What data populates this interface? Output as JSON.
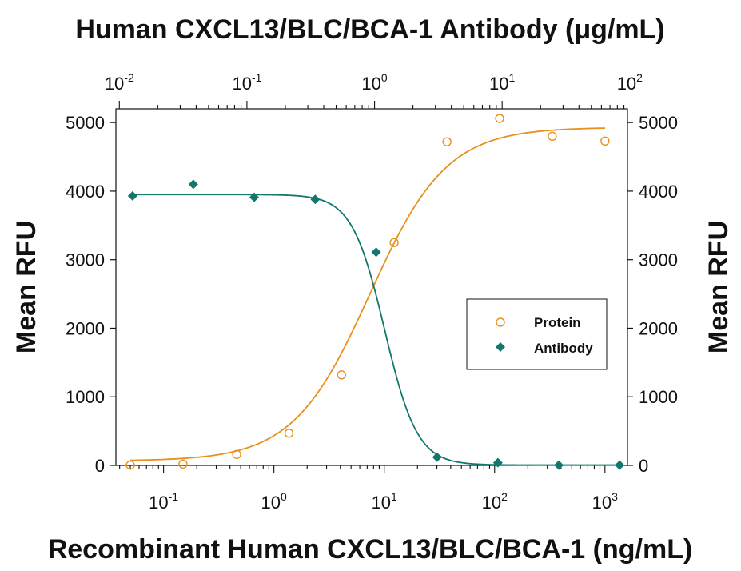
{
  "chart_data": {
    "type": "scatter",
    "title_top": "Human CXCL13/BLC/BCA-1 Antibody (μg/mL)",
    "xlabel": "Recombinant Human CXCL13/BLC/BCA-1 (ng/mL)",
    "ylabel_left": "Mean RFU",
    "ylabel_right": "Mean RFU",
    "x_scale": "log",
    "x_top_scale": "log",
    "xlim": [
      0.037,
      1600
    ],
    "x_top_lim": [
      0.0094,
      96
    ],
    "ylim": [
      0,
      5200
    ],
    "y_ticks": [
      "0",
      "1000",
      "2000",
      "3000",
      "4000",
      "5000"
    ],
    "y_tick_values": [
      0,
      1000,
      2000,
      3000,
      4000,
      5000
    ],
    "x_bottom_ticks": [
      {
        "value": 0.1,
        "base": "10",
        "exp": "-1"
      },
      {
        "value": 1,
        "base": "10",
        "exp": "0"
      },
      {
        "value": 10,
        "base": "10",
        "exp": "1"
      },
      {
        "value": 100,
        "base": "10",
        "exp": "2"
      },
      {
        "value": 1000,
        "base": "10",
        "exp": "3"
      }
    ],
    "x_top_ticks": [
      {
        "value": 0.01,
        "base": "10",
        "exp": "-2"
      },
      {
        "value": 0.1,
        "base": "10",
        "exp": "-1"
      },
      {
        "value": 1,
        "base": "10",
        "exp": "0"
      },
      {
        "value": 10,
        "base": "10",
        "exp": "1"
      },
      {
        "value": 100,
        "base": "10",
        "exp": "2"
      }
    ],
    "legend_position": "center-right",
    "series": [
      {
        "name": "Protein",
        "axis": "bottom",
        "marker": "open-circle",
        "color": "#e8901c",
        "x": [
          0.05,
          0.15,
          0.46,
          1.37,
          4.1,
          12.3,
          37,
          111,
          333,
          1000
        ],
        "y": [
          5,
          20,
          160,
          470,
          1320,
          3250,
          4720,
          5060,
          4800,
          4730
        ],
        "fit": {
          "bottom": 65,
          "top": 4930,
          "ec50": 7.4,
          "hill": 1.25
        }
      },
      {
        "name": "Antibody",
        "axis": "top",
        "marker": "filled-diamond",
        "color": "#13776f",
        "x": [
          0.0127,
          0.038,
          0.114,
          0.343,
          1.03,
          3.09,
          9.26,
          27.8,
          83.3
        ],
        "y": [
          3930,
          4100,
          3910,
          3880,
          3110,
          120,
          40,
          5,
          5
        ],
        "fit": {
          "top": 3950,
          "bottom": 5,
          "ic50": 1.2,
          "hill": 3.4
        }
      }
    ]
  }
}
